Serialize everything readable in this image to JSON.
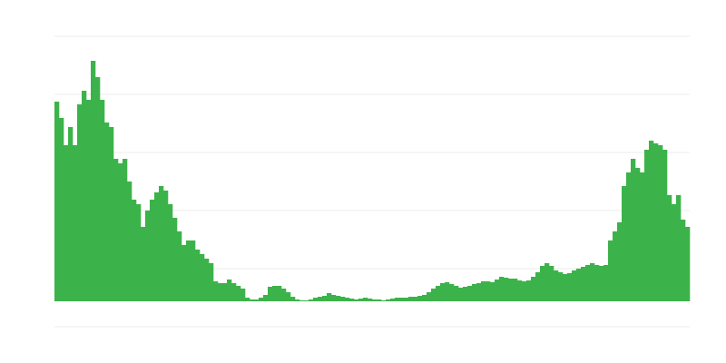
{
  "chart_data": {
    "type": "bar",
    "color": "#3cb34a",
    "grid": true,
    "ylim": [
      -28,
      292
    ],
    "yticks": [
      -28,
      36,
      100,
      164,
      228,
      292
    ],
    "values": [
      220,
      202,
      172,
      192,
      172,
      217,
      232,
      222,
      265,
      247,
      222,
      197,
      192,
      157,
      152,
      157,
      132,
      112,
      107,
      82,
      100,
      112,
      120,
      127,
      122,
      107,
      92,
      77,
      62,
      67,
      67,
      57,
      52,
      47,
      42,
      22,
      20,
      20,
      24,
      20,
      17,
      14,
      4,
      2,
      2,
      4,
      7,
      16,
      17,
      17,
      14,
      10,
      5,
      2,
      1,
      1,
      2,
      4,
      5,
      6,
      9,
      7,
      6,
      5,
      4,
      3,
      2,
      3,
      4,
      3,
      2,
      2,
      1,
      2,
      3,
      4,
      4,
      4,
      5,
      5,
      6,
      7,
      10,
      14,
      17,
      20,
      21,
      19,
      17,
      15,
      16,
      17,
      19,
      20,
      22,
      22,
      21,
      24,
      27,
      26,
      25,
      25,
      23,
      22,
      23,
      27,
      32,
      39,
      42,
      39,
      34,
      32,
      30,
      31,
      34,
      36,
      38,
      40,
      42,
      40,
      39,
      40,
      67,
      77,
      87,
      127,
      142,
      157,
      147,
      142,
      167,
      177,
      174,
      172,
      167,
      117,
      107,
      117,
      90,
      82
    ]
  }
}
